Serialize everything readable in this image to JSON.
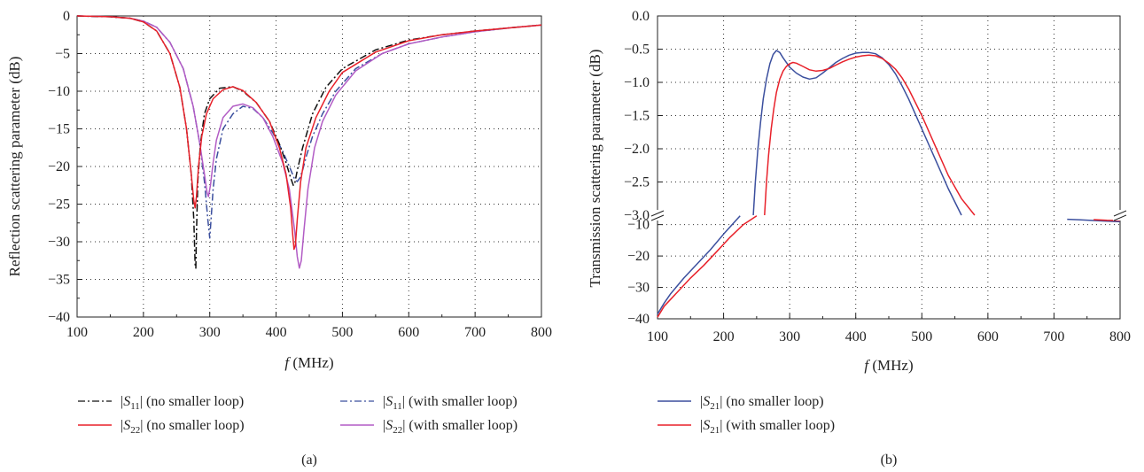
{
  "chart_data": [
    {
      "type": "line",
      "caption": "(a)",
      "xlabel_var": "f",
      "xlabel_unit": "(MHz)",
      "ylabel": "Reflection scattering parameter (dB)",
      "xlim": [
        100,
        800
      ],
      "ylim": [
        -40,
        0
      ],
      "xticks": [
        100,
        200,
        300,
        400,
        500,
        600,
        700,
        800
      ],
      "yticks": [
        0,
        -5,
        -10,
        -15,
        -20,
        -25,
        -30,
        -35,
        -40
      ],
      "grid": true,
      "legend_position": "bottom",
      "series": [
        {
          "name_sym": "S",
          "name_sub": "11",
          "name_rest": " (no smaller loop)",
          "color": "#111111",
          "dash": "dashdot",
          "x": [
            100,
            150,
            180,
            200,
            220,
            240,
            255,
            265,
            272,
            276,
            278,
            279,
            280,
            282,
            286,
            292,
            300,
            315,
            335,
            350,
            370,
            390,
            405,
            415,
            422,
            426,
            428,
            432,
            440,
            455,
            475,
            500,
            550,
            600,
            650,
            700,
            750,
            800
          ],
          "y": [
            0,
            -0.1,
            -0.3,
            -0.8,
            -2,
            -5,
            -9.5,
            -15,
            -21,
            -27,
            -33,
            -33.5,
            -29,
            -22,
            -17,
            -13,
            -11,
            -9.6,
            -9.4,
            -10,
            -11.5,
            -14,
            -17,
            -19.5,
            -21.5,
            -22.5,
            -22.3,
            -20.5,
            -17.5,
            -13,
            -9.5,
            -7,
            -4.5,
            -3.2,
            -2.5,
            -2,
            -1.6,
            -1.2
          ]
        },
        {
          "name_sym": "S",
          "name_sub": "22",
          "name_rest": " (no smaller loop)",
          "color": "#e8212a",
          "dash": "solid",
          "x": [
            100,
            150,
            180,
            200,
            220,
            240,
            255,
            265,
            272,
            276,
            278,
            280,
            283,
            288,
            295,
            305,
            320,
            335,
            350,
            370,
            390,
            405,
            415,
            422,
            425,
            427,
            429,
            432,
            437,
            445,
            460,
            480,
            500,
            550,
            600,
            650,
            700,
            750,
            800
          ],
          "y": [
            0,
            -0.1,
            -0.3,
            -0.8,
            -2,
            -5,
            -9.5,
            -15,
            -21,
            -24.5,
            -25.5,
            -24,
            -20,
            -16,
            -13,
            -11,
            -9.8,
            -9.4,
            -9.9,
            -11.5,
            -14,
            -17.5,
            -21,
            -25.5,
            -29,
            -31,
            -30.5,
            -27,
            -22,
            -17.5,
            -13.5,
            -10,
            -7.5,
            -4.8,
            -3.3,
            -2.5,
            -2,
            -1.6,
            -1.2
          ]
        },
        {
          "name_sym": "S",
          "name_sub": "11",
          "name_rest": " (with smaller loop)",
          "color": "#3b4f9e",
          "dash": "dashdot",
          "x": [
            100,
            150,
            180,
            200,
            220,
            240,
            260,
            275,
            285,
            292,
            297,
            300,
            302,
            305,
            310,
            320,
            335,
            350,
            365,
            380,
            395,
            410,
            420,
            428,
            432,
            436,
            440,
            446,
            455,
            470,
            490,
            520,
            560,
            600,
            650,
            700,
            750,
            800
          ],
          "y": [
            0,
            -0.1,
            -0.3,
            -0.7,
            -1.5,
            -3.5,
            -7,
            -12,
            -17,
            -22,
            -27,
            -29.5,
            -27,
            -23,
            -19,
            -15,
            -13,
            -12,
            -12.3,
            -13.5,
            -15.5,
            -18,
            -20,
            -21.7,
            -22,
            -21.5,
            -20.5,
            -18.5,
            -16,
            -13,
            -10,
            -7,
            -5,
            -3.7,
            -2.8,
            -2.1,
            -1.6,
            -1.2
          ]
        },
        {
          "name_sym": "S",
          "name_sub": "22",
          "name_rest": " (with smaller loop)",
          "color": "#b25cc5",
          "dash": "solid",
          "x": [
            100,
            150,
            180,
            200,
            220,
            240,
            260,
            275,
            285,
            292,
            296,
            298,
            301,
            305,
            310,
            320,
            335,
            350,
            365,
            380,
            395,
            410,
            420,
            428,
            432,
            435,
            438,
            442,
            448,
            458,
            470,
            490,
            520,
            560,
            600,
            650,
            700,
            750,
            800
          ],
          "y": [
            0,
            -0.1,
            -0.3,
            -0.7,
            -1.5,
            -3.5,
            -7,
            -12,
            -17,
            -21,
            -23.5,
            -24,
            -22.5,
            -19.5,
            -16.5,
            -13.5,
            -12,
            -11.7,
            -12.2,
            -13.5,
            -16,
            -19.5,
            -23,
            -28.5,
            -32,
            -33.5,
            -32.5,
            -28.5,
            -23,
            -17.5,
            -14,
            -10.5,
            -7.3,
            -5,
            -3.7,
            -2.8,
            -2.1,
            -1.6,
            -1.2
          ]
        }
      ]
    },
    {
      "type": "line",
      "caption": "(b)",
      "xlabel_var": "f",
      "xlabel_unit": "(MHz)",
      "ylabel": "Transmission scattering parameter (dB)",
      "xlim": [
        100,
        800
      ],
      "xticks": [
        100,
        200,
        300,
        400,
        500,
        600,
        700,
        800
      ],
      "broken_axis": true,
      "upper_ylim": [
        -3.0,
        0.0
      ],
      "upper_yticks": [
        "0.0",
        "-0.5",
        "-1.0",
        "-1.5",
        "-2.0",
        "-2.5",
        "-3.0"
      ],
      "lower_ylim": [
        -40,
        -7
      ],
      "lower_yticks": [
        "-10",
        "-20",
        "-30",
        "-40"
      ],
      "grid": true,
      "legend_position": "bottom",
      "series": [
        {
          "name_sym": "S",
          "name_sub": "21",
          "name_rest": " (no smaller loop)",
          "color": "#3b4f9e",
          "dash": "solid",
          "upper": {
            "x": [
              245,
              248,
              252,
              256,
              260,
              265,
              270,
              275,
              280,
              285,
              290,
              300,
              310,
              320,
              330,
              340,
              350,
              360,
              370,
              380,
              390,
              400,
              410,
              420,
              430,
              440,
              450,
              460,
              470,
              480,
              500,
              520,
              540,
              560
            ],
            "y": [
              -3.0,
              -2.5,
              -2.0,
              -1.6,
              -1.25,
              -0.95,
              -0.72,
              -0.58,
              -0.52,
              -0.55,
              -0.63,
              -0.77,
              -0.86,
              -0.92,
              -0.95,
              -0.93,
              -0.86,
              -0.78,
              -0.7,
              -0.64,
              -0.59,
              -0.56,
              -0.55,
              -0.55,
              -0.57,
              -0.63,
              -0.73,
              -0.87,
              -1.05,
              -1.25,
              -1.7,
              -2.15,
              -2.6,
              -3.0
            ]
          },
          "lower": {
            "x": [
              100,
              110,
              120,
              140,
              160,
              180,
              200,
              215,
              225,
              720,
              740,
              760,
              780,
              800
            ],
            "y": [
              -38.5,
              -35,
              -32,
              -27,
              -22.5,
              -18,
              -13,
              -9.5,
              -7.2,
              -8.3,
              -8.5,
              -8.7,
              -8.9,
              -9.1
            ]
          }
        },
        {
          "name_sym": "S",
          "name_sub": "21",
          "name_rest": " (with smaller loop)",
          "color": "#e8212a",
          "dash": "solid",
          "upper": {
            "x": [
              262,
              265,
              268,
              272,
              276,
              280,
              285,
              290,
              295,
              300,
              305,
              310,
              320,
              330,
              340,
              350,
              360,
              370,
              380,
              390,
              400,
              410,
              420,
              430,
              440,
              450,
              460,
              470,
              480,
              500,
              520,
              540,
              560,
              580
            ],
            "y": [
              -3.0,
              -2.5,
              -2.1,
              -1.7,
              -1.4,
              -1.15,
              -0.95,
              -0.83,
              -0.76,
              -0.72,
              -0.7,
              -0.71,
              -0.76,
              -0.81,
              -0.83,
              -0.82,
              -0.79,
              -0.74,
              -0.69,
              -0.65,
              -0.62,
              -0.6,
              -0.59,
              -0.6,
              -0.64,
              -0.71,
              -0.8,
              -0.93,
              -1.1,
              -1.5,
              -1.95,
              -2.4,
              -2.75,
              -3.0
            ]
          },
          "lower": {
            "x": [
              100,
              110,
              130,
              150,
              170,
              190,
              210,
              230,
              250,
              760,
              780,
              800
            ],
            "y": [
              -39.5,
              -36,
              -31.5,
              -27,
              -23,
              -18.5,
              -14,
              -10,
              -7.2,
              -8.4,
              -8.6,
              -8.7
            ]
          }
        }
      ]
    }
  ]
}
